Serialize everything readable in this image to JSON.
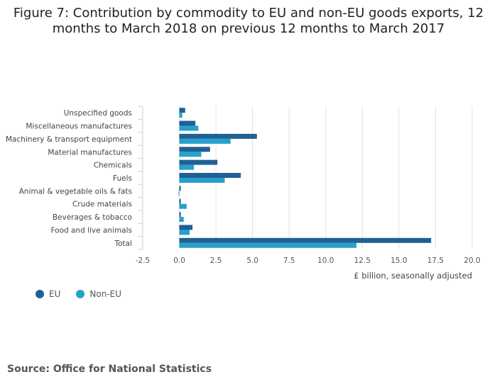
{
  "title_line1": "Figure 7: Contribution by commodity to EU and non-EU goods exports, 12",
  "title_line2": "months to March 2018 on previous 12 months to March 2017",
  "source": "Source: Office for National Statistics",
  "colors": {
    "eu": "#206095",
    "non_eu": "#27a0cc"
  },
  "chart_data": {
    "type": "bar",
    "orientation": "horizontal",
    "categories": [
      "Unspecified goods",
      "Miscellaneous manufactures",
      "Machinery & transport equipment",
      "Material manufactures",
      "Chemicals",
      "Fuels",
      "Animal & vegetable oils & fats",
      "Crude materials",
      "Beverages & tobacco",
      "Food and live animals",
      "Total"
    ],
    "series": [
      {
        "name": "EU",
        "values": [
          0.4,
          1.1,
          5.3,
          2.1,
          2.6,
          4.2,
          0.1,
          0.1,
          0.1,
          0.9,
          17.2
        ]
      },
      {
        "name": "Non-EU",
        "values": [
          0.2,
          1.3,
          3.5,
          1.5,
          1.0,
          3.1,
          -0.05,
          0.5,
          0.3,
          0.7,
          12.1
        ]
      }
    ],
    "xlabel": "£ billion, seasonally adjusted",
    "xlim": [
      -2.5,
      20.0
    ],
    "xticks": [
      -2.5,
      0.0,
      2.5,
      5.0,
      7.5,
      10.0,
      12.5,
      15.0,
      17.5,
      20.0
    ],
    "xtick_labels": [
      "-2.5",
      "0.0",
      "2.5",
      "5.0",
      "7.5",
      "10.0",
      "12.5",
      "15.0",
      "17.5",
      "20.0"
    ],
    "grid": true,
    "legend_position": "bottom-left"
  }
}
